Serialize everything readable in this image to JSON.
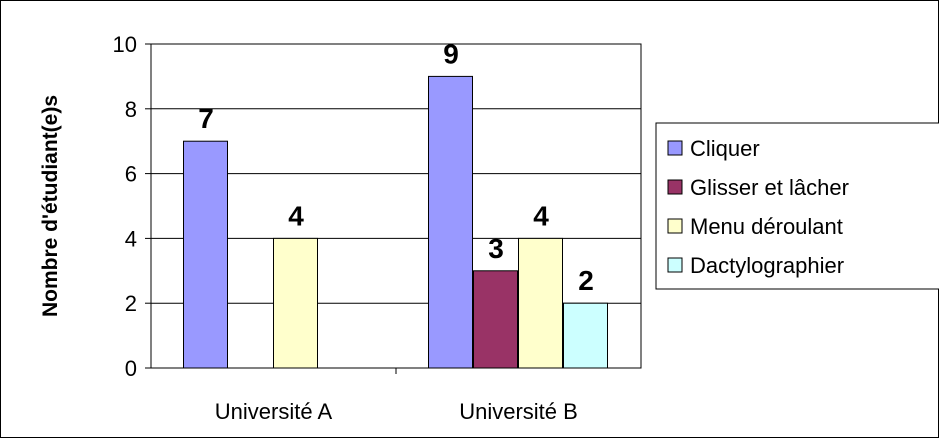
{
  "chart_data": {
    "type": "bar",
    "categories": [
      "Université A",
      "Université B"
    ],
    "series": [
      {
        "name": "Cliquer",
        "values": [
          7,
          9
        ],
        "color": "#9999ff"
      },
      {
        "name": "Glisser et lâcher",
        "values": [
          null,
          3
        ],
        "color": "#993366"
      },
      {
        "name": "Menu déroulant",
        "values": [
          4,
          4
        ],
        "color": "#ffffcc"
      },
      {
        "name": "Dactylographier",
        "values": [
          null,
          2
        ],
        "color": "#ccffff"
      }
    ],
    "data_labels": [
      [
        7,
        9
      ],
      [
        null,
        3
      ],
      [
        4,
        4
      ],
      [
        null,
        2
      ]
    ],
    "ylabel": "Nombre d'étudiant(e)s",
    "xlabel": "",
    "title": "",
    "ylim": [
      0,
      10
    ],
    "yticks": [
      0,
      2,
      4,
      6,
      8,
      10
    ],
    "grid": true,
    "legend_position": "right"
  }
}
